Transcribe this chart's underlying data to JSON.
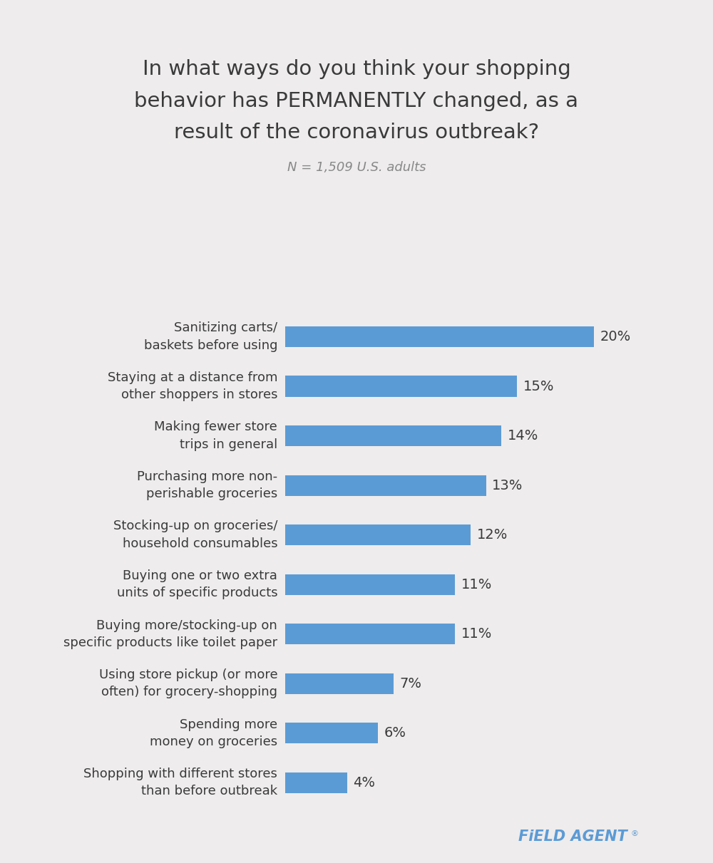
{
  "title_line1": "In what ways do you think your shopping",
  "title_line2_normal1": "behavior has ",
  "title_line2_bold": "PERMANENTLY",
  "title_line2_normal2": " changed, as a",
  "title_line3": "result of the coronavirus outbreak?",
  "subtitle": "N = 1,509 U.S. adults",
  "categories": [
    "Sanitizing carts/\nbaskets before using",
    "Staying at a distance from\nother shoppers in stores",
    "Making fewer store\ntrips in general",
    "Purchasing more non-\nperishable groceries",
    "Stocking-up on groceries/\nhousehold consumables",
    "Buying one or two extra\nunits of specific products",
    "Buying more/stocking-up on\nspecific products like toilet paper",
    "Using store pickup (or more\noften) for grocery-shopping",
    "Spending more\nmoney on groceries",
    "Shopping with different stores\nthan before outbreak"
  ],
  "values": [
    20,
    15,
    14,
    13,
    12,
    11,
    11,
    7,
    6,
    4
  ],
  "bar_color": "#5b9bd5",
  "label_color": "#3a3a3a",
  "title_color": "#3a3a3a",
  "subtitle_color": "#888888",
  "background_color": "#eeecec",
  "brand_text": "FiELD AGENT",
  "brand_superscript": "®",
  "brand_color": "#5b9bd5",
  "xlim": [
    0,
    24
  ],
  "bar_height": 0.42,
  "title_fontsize": 21,
  "label_fontsize": 13,
  "value_fontsize": 14,
  "subtitle_fontsize": 13
}
